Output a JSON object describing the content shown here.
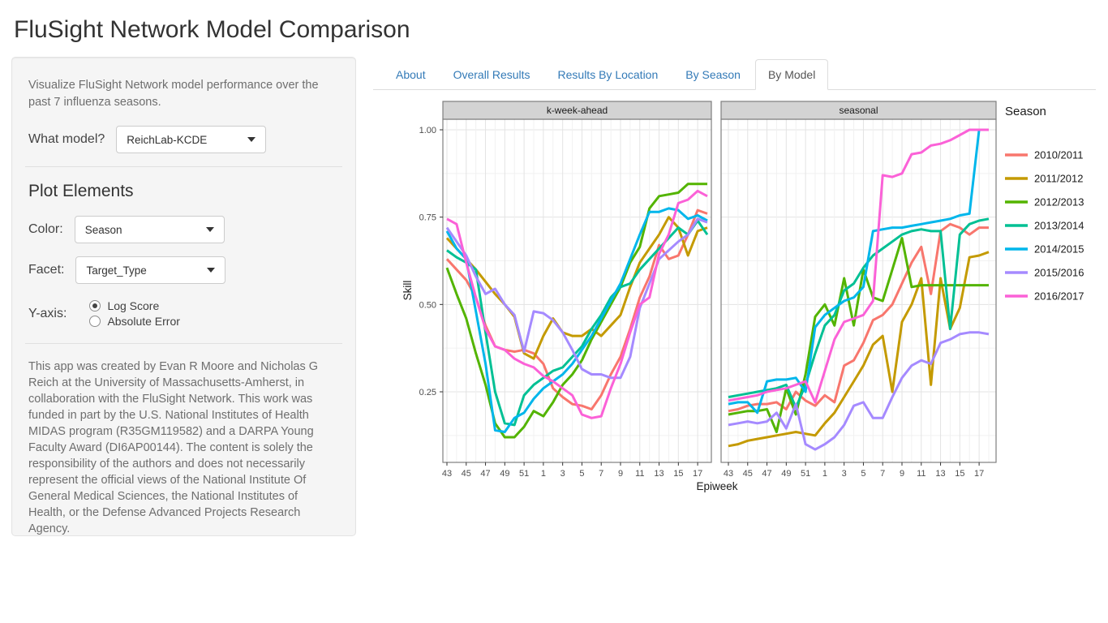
{
  "page": {
    "title": "FluSight Network Model Comparison"
  },
  "sidebar": {
    "description": "Visualize FluSight Network model performance over the past 7 influenza seasons.",
    "model_label": "What model?",
    "model_value": "ReichLab-KCDE",
    "plot_elements_heading": "Plot Elements",
    "color_label": "Color:",
    "color_value": "Season",
    "facet_label": "Facet:",
    "facet_value": "Target_Type",
    "yaxis_label": "Y-axis:",
    "yaxis_options": [
      {
        "label": "Log Score",
        "selected": true
      },
      {
        "label": "Absolute Error",
        "selected": false
      }
    ],
    "credits": "This app was created by Evan R Moore and Nicholas G Reich at the University of Massachusetts-Amherst, in collaboration with the FluSight Network. This work was funded in part by the U.S. National Institutes of Health MIDAS program (R35GM119582) and a DARPA Young Faculty Award (DI6AP00144). The content is solely the responsibility of the authors and does not necessarily represent the official views of the National Institute Of General Medical Sciences, the National Institutes of Health, or the Defense Advanced Projects Research Agency."
  },
  "tabs": [
    {
      "label": "About",
      "active": false
    },
    {
      "label": "Overall Results",
      "active": false
    },
    {
      "label": "Results By Location",
      "active": false
    },
    {
      "label": "By Season",
      "active": false
    },
    {
      "label": "By Model",
      "active": true
    }
  ],
  "chart_data": {
    "type": "line",
    "xlabel": "Epiweek",
    "ylabel": "Skill",
    "x_weeks": [
      43,
      44,
      45,
      46,
      47,
      48,
      49,
      50,
      51,
      52,
      1,
      2,
      3,
      4,
      5,
      6,
      7,
      8,
      9,
      10,
      11,
      12,
      13,
      14,
      15,
      16,
      17,
      18
    ],
    "x_tick_labels": [
      "43",
      "45",
      "47",
      "49",
      "51",
      "1",
      "3",
      "5",
      "7",
      "9",
      "11",
      "13",
      "15",
      "17"
    ],
    "y_ticks": [
      0.25,
      0.5,
      0.75,
      1.0
    ],
    "y_tick_labels": [
      "0.25",
      "0.50",
      "0.75",
      "1.00"
    ],
    "ylim": [
      0.05,
      1.03
    ],
    "grid": true,
    "legend_title": "Season",
    "legend_position": "right",
    "facets": [
      {
        "label": "k-week-ahead",
        "series": [
          {
            "name": "2010/2011",
            "color": "#F8766D",
            "values": [
              0.63,
              0.6,
              0.57,
              0.52,
              0.44,
              0.38,
              0.37,
              0.365,
              0.37,
              0.36,
              0.33,
              0.26,
              0.235,
              0.215,
              0.21,
              0.2,
              0.24,
              0.3,
              0.35,
              0.43,
              0.52,
              0.58,
              0.67,
              0.63,
              0.64,
              0.7,
              0.77,
              0.76
            ]
          },
          {
            "name": "2011/2012",
            "color": "#C49A00",
            "values": [
              0.69,
              0.66,
              0.63,
              0.6,
              0.565,
              0.53,
              0.5,
              0.465,
              0.36,
              0.345,
              0.41,
              0.46,
              0.42,
              0.41,
              0.41,
              0.43,
              0.41,
              0.44,
              0.47,
              0.55,
              0.62,
              0.66,
              0.7,
              0.75,
              0.72,
              0.64,
              0.71,
              0.72
            ]
          },
          {
            "name": "2012/2013",
            "color": "#53B400",
            "values": [
              0.605,
              0.53,
              0.46,
              0.36,
              0.27,
              0.16,
              0.12,
              0.12,
              0.15,
              0.195,
              0.18,
              0.22,
              0.27,
              0.3,
              0.34,
              0.4,
              0.45,
              0.5,
              0.55,
              0.62,
              0.665,
              0.775,
              0.81,
              0.815,
              0.82,
              0.845,
              0.845,
              0.845
            ]
          },
          {
            "name": "2013/2014",
            "color": "#00C094",
            "values": [
              0.655,
              0.635,
              0.62,
              0.6,
              0.42,
              0.25,
              0.16,
              0.155,
              0.24,
              0.27,
              0.29,
              0.31,
              0.32,
              0.35,
              0.38,
              0.43,
              0.47,
              0.52,
              0.55,
              0.56,
              0.6,
              0.63,
              0.66,
              0.69,
              0.72,
              0.7,
              0.74,
              0.7
            ]
          },
          {
            "name": "2014/2015",
            "color": "#00B6EB",
            "values": [
              0.71,
              0.66,
              0.63,
              0.48,
              0.33,
              0.14,
              0.135,
              0.175,
              0.19,
              0.23,
              0.26,
              0.28,
              0.3,
              0.33,
              0.37,
              0.41,
              0.46,
              0.51,
              0.56,
              0.63,
              0.7,
              0.765,
              0.765,
              0.775,
              0.77,
              0.745,
              0.755,
              0.74
            ]
          },
          {
            "name": "2015/2016",
            "color": "#A58AFF",
            "values": [
              0.72,
              0.68,
              0.64,
              0.58,
              0.53,
              0.545,
              0.5,
              0.47,
              0.365,
              0.48,
              0.475,
              0.455,
              0.42,
              0.37,
              0.315,
              0.3,
              0.3,
              0.29,
              0.29,
              0.35,
              0.49,
              0.56,
              0.63,
              0.655,
              0.68,
              0.7,
              0.745,
              0.735
            ]
          },
          {
            "name": "2016/2017",
            "color": "#FB61D7",
            "values": [
              0.745,
              0.73,
              0.62,
              0.52,
              0.43,
              0.38,
              0.37,
              0.345,
              0.33,
              0.32,
              0.295,
              0.28,
              0.26,
              0.24,
              0.185,
              0.175,
              0.18,
              0.26,
              0.33,
              0.42,
              0.5,
              0.52,
              0.645,
              0.7,
              0.79,
              0.8,
              0.825,
              0.81
            ]
          }
        ]
      },
      {
        "label": "seasonal",
        "series": [
          {
            "name": "2010/2011",
            "color": "#F8766D",
            "values": [
              0.195,
              0.2,
              0.21,
              0.215,
              0.215,
              0.22,
              0.2,
              0.25,
              0.225,
              0.21,
              0.24,
              0.22,
              0.325,
              0.34,
              0.39,
              0.455,
              0.47,
              0.5,
              0.56,
              0.62,
              0.665,
              0.53,
              0.71,
              0.73,
              0.72,
              0.7,
              0.72,
              0.72
            ]
          },
          {
            "name": "2011/2012",
            "color": "#C49A00",
            "values": [
              0.095,
              0.1,
              0.11,
              0.115,
              0.12,
              0.125,
              0.13,
              0.135,
              0.13,
              0.125,
              0.16,
              0.19,
              0.235,
              0.28,
              0.325,
              0.385,
              0.41,
              0.25,
              0.45,
              0.5,
              0.575,
              0.27,
              0.575,
              0.43,
              0.49,
              0.635,
              0.64,
              0.65
            ]
          },
          {
            "name": "2012/2013",
            "color": "#53B400",
            "values": [
              0.185,
              0.19,
              0.195,
              0.195,
              0.2,
              0.135,
              0.26,
              0.185,
              0.3,
              0.465,
              0.5,
              0.44,
              0.575,
              0.44,
              0.6,
              0.52,
              0.51,
              0.6,
              0.69,
              0.55,
              0.555,
              0.555,
              0.555,
              0.555,
              0.555,
              0.555,
              0.555,
              0.555
            ]
          },
          {
            "name": "2013/2014",
            "color": "#00C094",
            "values": [
              0.235,
              0.24,
              0.245,
              0.25,
              0.255,
              0.26,
              0.27,
              0.205,
              0.27,
              0.36,
              0.44,
              0.47,
              0.54,
              0.56,
              0.605,
              0.64,
              0.66,
              0.68,
              0.7,
              0.71,
              0.715,
              0.71,
              0.71,
              0.43,
              0.7,
              0.73,
              0.74,
              0.745
            ]
          },
          {
            "name": "2014/2015",
            "color": "#00B6EB",
            "values": [
              0.215,
              0.22,
              0.22,
              0.19,
              0.28,
              0.285,
              0.285,
              0.29,
              0.25,
              0.435,
              0.47,
              0.49,
              0.51,
              0.52,
              0.55,
              0.71,
              0.715,
              0.72,
              0.72,
              0.725,
              0.73,
              0.735,
              0.74,
              0.745,
              0.755,
              0.76,
              1.0,
              1.0
            ]
          },
          {
            "name": "2015/2016",
            "color": "#A58AFF",
            "values": [
              0.155,
              0.16,
              0.165,
              0.16,
              0.165,
              0.19,
              0.145,
              0.215,
              0.1,
              0.085,
              0.1,
              0.12,
              0.155,
              0.21,
              0.22,
              0.175,
              0.175,
              0.235,
              0.29,
              0.325,
              0.34,
              0.33,
              0.39,
              0.4,
              0.415,
              0.42,
              0.42,
              0.415
            ]
          },
          {
            "name": "2016/2017",
            "color": "#FB61D7",
            "values": [
              0.225,
              0.23,
              0.235,
              0.24,
              0.25,
              0.255,
              0.26,
              0.27,
              0.28,
              0.22,
              0.31,
              0.4,
              0.45,
              0.46,
              0.47,
              0.51,
              0.87,
              0.865,
              0.875,
              0.93,
              0.935,
              0.955,
              0.96,
              0.97,
              0.985,
              1.0,
              1.0,
              1.0
            ]
          }
        ]
      }
    ]
  }
}
